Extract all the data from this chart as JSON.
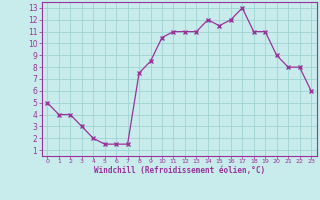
{
  "x": [
    0,
    1,
    2,
    3,
    4,
    5,
    6,
    7,
    8,
    9,
    10,
    11,
    12,
    13,
    14,
    15,
    16,
    17,
    18,
    19,
    20,
    21,
    22,
    23
  ],
  "y": [
    5,
    4,
    4,
    3,
    2,
    1.5,
    1.5,
    1.5,
    7.5,
    8.5,
    10.5,
    11,
    11,
    11,
    12,
    11.5,
    12,
    13,
    11,
    11,
    9,
    8,
    8,
    6
  ],
  "line_color": "#993399",
  "marker": "x",
  "marker_color": "#993399",
  "bg_color": "#c8ecec",
  "grid_color": "#a0d4d4",
  "xlabel": "Windchill (Refroidissement éolien,°C)",
  "xlabel_color": "#993399",
  "xlim": [
    -0.5,
    23.5
  ],
  "ylim": [
    0.5,
    13.5
  ],
  "yticks": [
    1,
    2,
    3,
    4,
    5,
    6,
    7,
    8,
    9,
    10,
    11,
    12,
    13
  ],
  "xticks": [
    0,
    1,
    2,
    3,
    4,
    5,
    6,
    7,
    8,
    9,
    10,
    11,
    12,
    13,
    14,
    15,
    16,
    17,
    18,
    19,
    20,
    21,
    22,
    23
  ],
  "tick_color": "#993399",
  "axis_color": "#993399",
  "spine_color": "#993399"
}
